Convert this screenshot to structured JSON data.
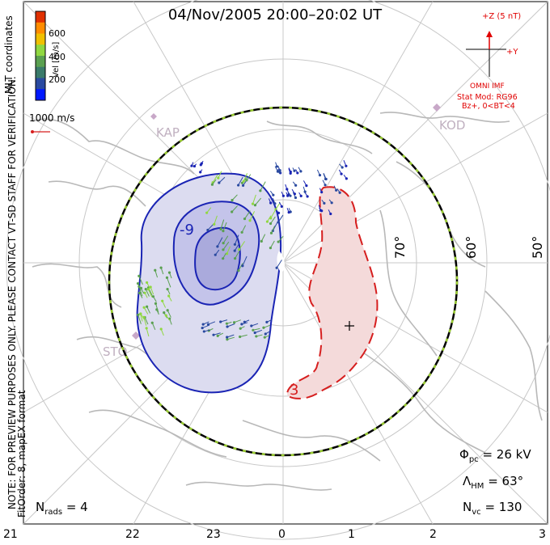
{
  "title": "04/Nov/2005 20:00–20:02 UT",
  "coordinates": "MLT coordinates",
  "colorbar": {
    "label": "Vel [m/s]",
    "ticks": [
      "600",
      "400",
      "200"
    ],
    "colors": [
      "#e03000",
      "#ff8c00",
      "#f0c000",
      "#90d840",
      "#5aa050",
      "#3a7a6a",
      "#2a4aa0",
      "#0018ff"
    ]
  },
  "scale_vector": "1000 m/s",
  "imf": {
    "z_label": "+Z (5 nT)",
    "y_label": "+Y",
    "source": "OMNI IMF",
    "model_lines": [
      "Stat Mod: RG96",
      "Bz+, 0<BT<4"
    ]
  },
  "stations": [
    "KAP",
    "KOD",
    "STO"
  ],
  "latitude_labels": [
    "70°",
    "60°",
    "50°"
  ],
  "contour_labels": [
    "-9",
    "3"
  ],
  "notes": [
    "NOTE: FOR PREVIEW PURPOSES ONLY. PLEASE CONTACT VT-SD STAFF FOR VERIFICATION.",
    "FitOrder: 8, mapEX format"
  ],
  "stats": {
    "nrads_label": "N",
    "nrads_sub": "rads",
    "nrads_value": "= 4",
    "phi_label": "Φ",
    "phi_sub": "pc",
    "phi_value": "= 26 kV",
    "lambda_label": "Λ",
    "lambda_sub": "HM",
    "lambda_value": "= 63°",
    "nvc_label": "N",
    "nvc_sub": "vc",
    "nvc_value": "= 130"
  },
  "mlt_axis": [
    "21",
    "22",
    "23",
    "0",
    "1",
    "2",
    "3"
  ],
  "colors": {
    "negative_cell": "#1a24b4",
    "positive_cell": "#d61e1e",
    "boundary": "#000000",
    "boundary_dash": "#9acd32",
    "grid": "#c8c8c8",
    "coast": "#b8b8b8"
  }
}
